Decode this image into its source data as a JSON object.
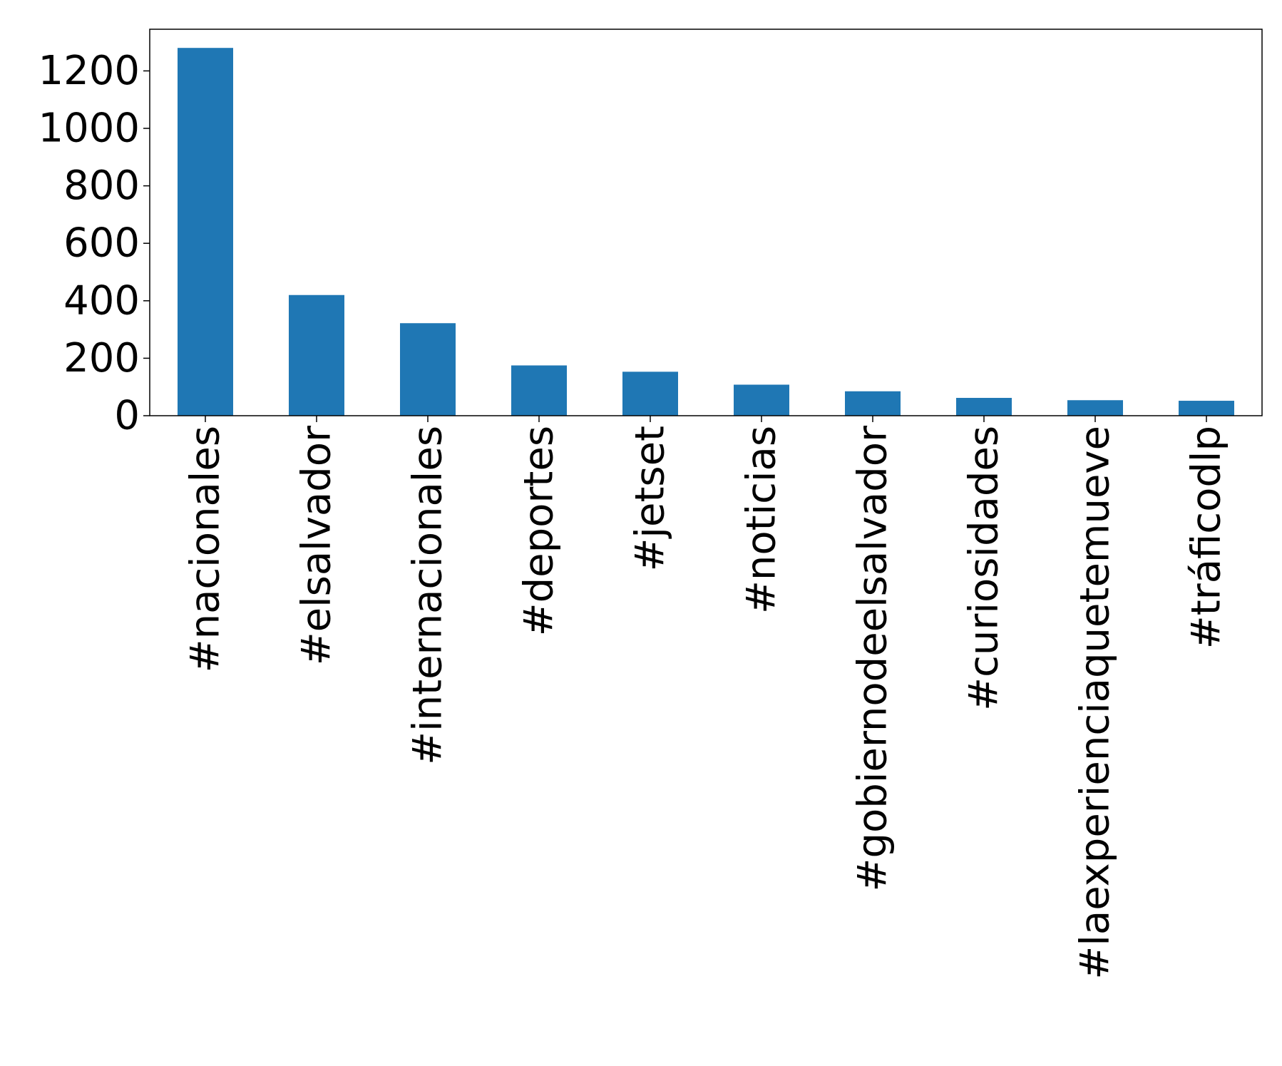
{
  "chart_data": {
    "type": "bar",
    "title": "",
    "xlabel": "",
    "ylabel": "",
    "categories": [
      "#nacionales",
      "#elsalvador",
      "#internacionales",
      "#deportes",
      "#jetset",
      "#noticias",
      "#gobiernodeelsalvador",
      "#curiosidades",
      "#laexperienciaquetemueve",
      "#tráficodlp"
    ],
    "values": [
      1280,
      420,
      322,
      175,
      153,
      108,
      85,
      62,
      54,
      52
    ],
    "ylim": [
      0,
      1345
    ],
    "yticks": [
      0,
      200,
      400,
      600,
      800,
      1000,
      1200
    ],
    "grid": false,
    "legend": "none",
    "bar_color": "#1f77b4"
  }
}
